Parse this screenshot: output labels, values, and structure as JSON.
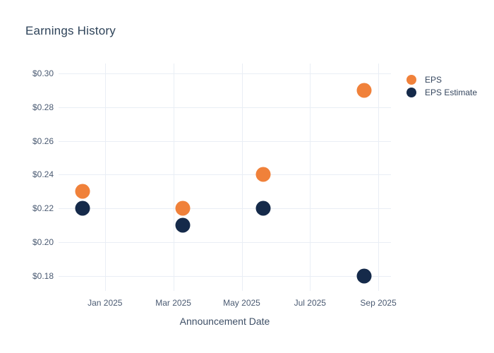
{
  "chart_data": {
    "type": "scatter",
    "title": "Earnings History",
    "xlabel": "Announcement Date",
    "ylabel": "",
    "grid": true,
    "legend_position": "right-top",
    "marker_size_px": 21,
    "legend_marker_size_px": 14,
    "x_range_months": [
      -1.36,
      8.37
    ],
    "y_range": [
      0.171,
      0.306
    ],
    "x_ticks": [
      {
        "label": "Jan 2025",
        "m": 0
      },
      {
        "label": "Mar 2025",
        "m": 2
      },
      {
        "label": "May 2025",
        "m": 4
      },
      {
        "label": "Jul 2025",
        "m": 6
      },
      {
        "label": "Sep 2025",
        "m": 8
      }
    ],
    "y_ticks": [
      {
        "label": "$0.30",
        "value": 0.3
      },
      {
        "label": "$0.28",
        "value": 0.28
      },
      {
        "label": "$0.26",
        "value": 0.26
      },
      {
        "label": "$0.24",
        "value": 0.24
      },
      {
        "label": "$0.22",
        "value": 0.22
      },
      {
        "label": "$0.20",
        "value": 0.2
      },
      {
        "label": "$0.18",
        "value": 0.18
      }
    ],
    "series": [
      {
        "name": "EPS Estimate",
        "color": "#152a4a",
        "points": [
          {
            "date_approx": "mid-Dec 2024",
            "m": -0.65,
            "value": 0.22
          },
          {
            "date_approx": "early-Mar 2025",
            "m": 2.27,
            "value": 0.21
          },
          {
            "date_approx": "late-May 2025",
            "m": 4.63,
            "value": 0.22
          },
          {
            "date_approx": "mid-Aug 2025",
            "m": 7.59,
            "value": 0.18
          }
        ]
      },
      {
        "name": "EPS",
        "color": "#f0813a",
        "points": [
          {
            "date_approx": "mid-Dec 2024",
            "m": -0.65,
            "value": 0.23
          },
          {
            "date_approx": "early-Mar 2025",
            "m": 2.27,
            "value": 0.22
          },
          {
            "date_approx": "late-May 2025",
            "m": 4.63,
            "value": 0.24
          },
          {
            "date_approx": "mid-Aug 2025",
            "m": 7.59,
            "value": 0.29
          }
        ]
      }
    ],
    "colors": {
      "background": "#ffffff",
      "grid": "#e9eef5",
      "title_text": "#2e4359",
      "tick_text": "#4a5a72",
      "axis_title_text": "#3e4f66",
      "legend_text": "#36475f"
    }
  }
}
